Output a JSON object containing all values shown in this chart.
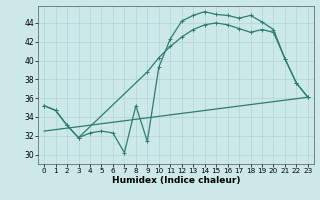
{
  "xlabel": "Humidex (Indice chaleur)",
  "bg_color": "#cce8e8",
  "line_color": "#2d7d6e",
  "xticks": [
    0,
    1,
    2,
    3,
    4,
    5,
    6,
    7,
    8,
    9,
    10,
    11,
    12,
    13,
    14,
    15,
    16,
    17,
    18,
    19,
    20,
    21,
    22,
    23
  ],
  "yticks": [
    30,
    32,
    34,
    36,
    38,
    40,
    42,
    44
  ],
  "ylim": [
    29.0,
    45.8
  ],
  "xlim": [
    -0.5,
    23.5
  ],
  "series1_x": [
    0,
    1,
    2,
    3,
    4,
    5,
    6,
    7,
    8,
    9,
    10,
    11,
    12,
    13,
    14,
    15,
    16,
    17,
    18,
    19,
    20,
    21,
    22,
    23
  ],
  "series1_y": [
    35.2,
    34.7,
    33.1,
    31.8,
    32.3,
    32.5,
    32.3,
    30.2,
    35.2,
    31.4,
    39.3,
    42.3,
    44.2,
    44.8,
    45.2,
    44.9,
    44.8,
    44.5,
    44.8,
    44.1,
    43.3,
    40.2,
    37.6,
    36.1
  ],
  "series2_x": [
    0,
    1,
    2,
    3,
    9,
    10,
    11,
    12,
    13,
    14,
    15,
    16,
    17,
    18,
    19,
    20,
    21,
    22,
    23
  ],
  "series2_y": [
    35.2,
    34.7,
    33.1,
    31.8,
    38.8,
    40.3,
    41.5,
    42.5,
    43.3,
    43.8,
    44.0,
    43.8,
    43.4,
    43.0,
    43.3,
    43.0,
    40.2,
    37.6,
    36.1
  ],
  "series3_x": [
    0,
    23
  ],
  "series3_y": [
    32.5,
    36.1
  ],
  "linewidth": 0.9,
  "marker": "+",
  "markersize": 3.5
}
